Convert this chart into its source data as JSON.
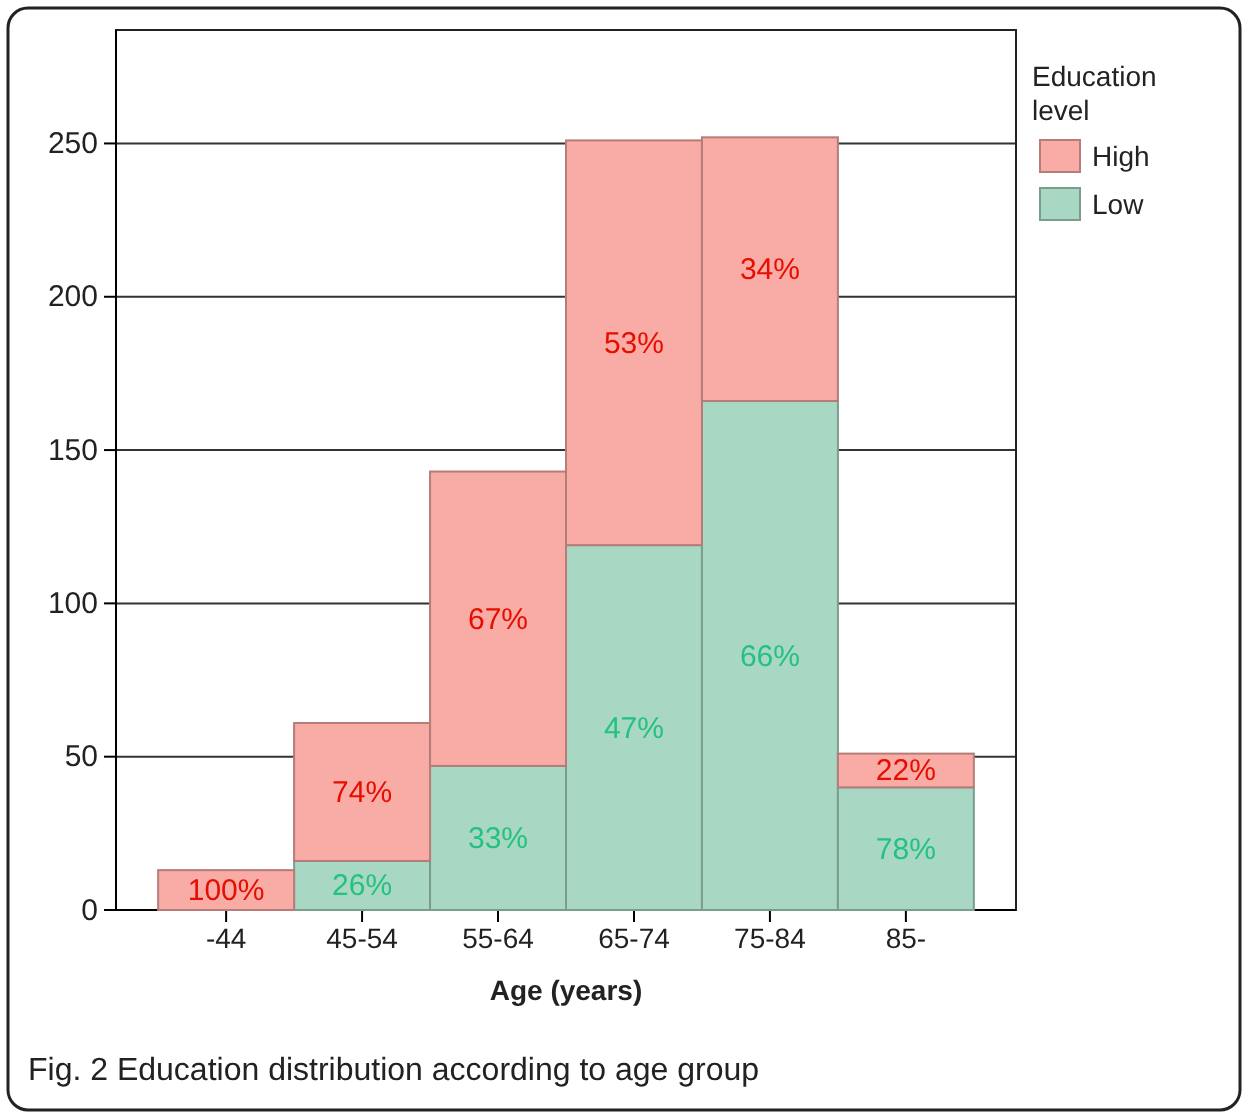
{
  "chart_data": {
    "type": "bar",
    "stacked": true,
    "xlabel": "Age (years)",
    "legend_title": "Education level",
    "legend": "top right",
    "grid": "y",
    "categories": [
      "-44",
      "45-54",
      "55-64",
      "65-74",
      "75-84",
      "85-"
    ],
    "series": [
      {
        "name": "Low",
        "color": "#a8d8c4",
        "values": [
          0,
          16,
          47,
          119,
          166,
          40
        ]
      },
      {
        "name": "High",
        "color": "#f9aba6",
        "values": [
          13,
          45,
          96,
          132,
          86,
          11
        ]
      }
    ],
    "ylim": [
      0,
      287
    ],
    "yticks": [
      0,
      50,
      100,
      150,
      200,
      250
    ],
    "annotations": [
      "100%",
      "26%",
      "74%",
      "33%",
      "67%",
      "47%",
      "53%",
      "66%",
      "34%",
      "78%",
      "22%",
      "Fig. 2 Education distribution according to age group"
    ]
  }
}
